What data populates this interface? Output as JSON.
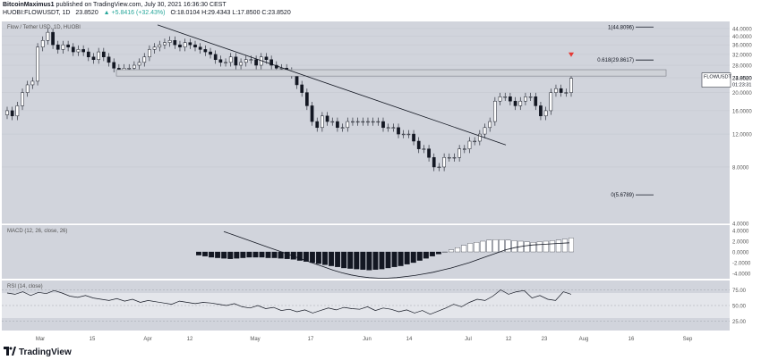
{
  "header": {
    "author": "BitcoinMaximus1",
    "published_text": "published on TradingView.com, July 30, 2021 16:36:30 CEST",
    "symbol": "HUOBI:FLOWUSDT, 1D",
    "last": "23.8520",
    "change": "▲ +5.8416 (+32.43%)",
    "ohlc": "O:18.0104  H:29.4343  L:17.8500  C:23.8520"
  },
  "footer": {
    "brand": "TradingView"
  },
  "chart_data": [
    {
      "type": "candlestick",
      "title": "Flow / Tether USD, 1D, HUOBI",
      "symbol_tag": "FLOWUSDT",
      "price_tag": "23.8520",
      "countdown_tag": "01:23:31",
      "ylim": [
        4,
        48
      ],
      "y_scale": "log",
      "y_ticks": [
        "4.0000",
        "8.0000",
        "12.0000",
        "16.0000",
        "20.0000",
        "24.0000",
        "28.0000",
        "32.0000",
        "36.0000",
        "40.0000",
        "44.0000"
      ],
      "x_ticks": [
        "Mar",
        "15",
        "Apr",
        "12",
        "May",
        "17",
        "Jun",
        "14",
        "Jul",
        "12",
        "23",
        "Aug",
        "16",
        "Sep"
      ],
      "closes": [
        16,
        15,
        17,
        20,
        22,
        23,
        35,
        38,
        42,
        36,
        34,
        36,
        35,
        33,
        34,
        33,
        31,
        30,
        33,
        31,
        29,
        27,
        26,
        27,
        27,
        28,
        29,
        31,
        34,
        35,
        36,
        37,
        38,
        36,
        35,
        37,
        36,
        35,
        34,
        33,
        32,
        30,
        29,
        29,
        31,
        28,
        29,
        30,
        30,
        28,
        31,
        30,
        28,
        27,
        27,
        26,
        25,
        22,
        20,
        17,
        14,
        13,
        15,
        14,
        14,
        13,
        13,
        14,
        14,
        14,
        14,
        14,
        14,
        14,
        13,
        13,
        13,
        12,
        12,
        12,
        11,
        10,
        10,
        9,
        8,
        8,
        9,
        9,
        9,
        10,
        10,
        11,
        11,
        12,
        13,
        14,
        18,
        19,
        19,
        18,
        17,
        18,
        19,
        19,
        17,
        15,
        16,
        20,
        21,
        20,
        20,
        23.85
      ],
      "annotations": [
        {
          "label": "1(44.8096)",
          "value": 44.8096
        },
        {
          "label": "0.618(29.8617)",
          "value": 29.8617
        },
        {
          "label": "0(5.6789)",
          "value": 5.6789
        }
      ],
      "support_zone": [
        24.5,
        26.5
      ],
      "trendline": {
        "from": [
          "Mar 26",
          46
        ],
        "to": [
          "Jul 12",
          10.5
        ]
      }
    },
    {
      "type": "histogram",
      "title": "MACD (12, 26, close, 26)",
      "y_ticks": [
        "4.0000",
        "2.0000",
        "0.0000",
        "-2.0000",
        "-4.0000"
      ],
      "ylim": [
        -5,
        5
      ],
      "histogram": [
        -0.6,
        -0.8,
        -1.0,
        -1.1,
        -1.2,
        -1.3,
        -1.2,
        -1.1,
        -1.0,
        -1.0,
        -1.0,
        -1.1,
        -1.1,
        -1.2,
        -1.3,
        -1.4,
        -1.6,
        -1.8,
        -2.0,
        -2.2,
        -2.4,
        -2.6,
        -2.8,
        -3.0,
        -3.1,
        -3.2,
        -3.3,
        -3.4,
        -3.3,
        -3.2,
        -3.0,
        -2.8,
        -2.6,
        -2.3,
        -2.0,
        -1.6,
        -1.2,
        -0.8,
        -0.4,
        0.0,
        0.4,
        0.8,
        1.2,
        1.6,
        1.8,
        2.0,
        2.2,
        2.3,
        2.3,
        2.2,
        2.1,
        2.0,
        1.9,
        1.8,
        1.9,
        2.0,
        2.1,
        2.2,
        2.4,
        2.6
      ],
      "signal": [
        3.8,
        3.2,
        2.6,
        2.0,
        1.4,
        0.8,
        0.2,
        -0.4,
        -1.0,
        -1.6,
        -2.2,
        -2.8,
        -3.4,
        -3.9,
        -4.3,
        -4.6,
        -4.8,
        -4.9,
        -4.9,
        -4.8,
        -4.6,
        -4.4,
        -4.1,
        -3.8,
        -3.4,
        -3.0,
        -2.5,
        -2.0,
        -1.4,
        -0.8,
        -0.2,
        0.4,
        0.8,
        1.1,
        1.3,
        1.4,
        1.5,
        1.6,
        1.7
      ]
    },
    {
      "type": "line",
      "title": "RSI (14, close)",
      "y_ticks": [
        "75.00",
        "50.00",
        "25.00"
      ],
      "ylim": [
        10,
        90
      ],
      "band": [
        30,
        70
      ],
      "values": [
        70,
        68,
        72,
        66,
        71,
        69,
        74,
        70,
        65,
        63,
        66,
        62,
        60,
        58,
        61,
        57,
        60,
        55,
        58,
        56,
        54,
        52,
        57,
        55,
        53,
        55,
        54,
        52,
        50,
        53,
        48,
        46,
        50,
        45,
        47,
        42,
        44,
        40,
        43,
        38,
        42,
        46,
        43,
        47,
        45,
        44,
        48,
        42,
        46,
        44,
        40,
        43,
        38,
        42,
        36,
        41,
        46,
        52,
        48,
        55,
        60,
        58,
        65,
        75,
        68,
        72,
        74,
        62,
        66,
        60,
        58,
        72,
        68
      ]
    }
  ]
}
